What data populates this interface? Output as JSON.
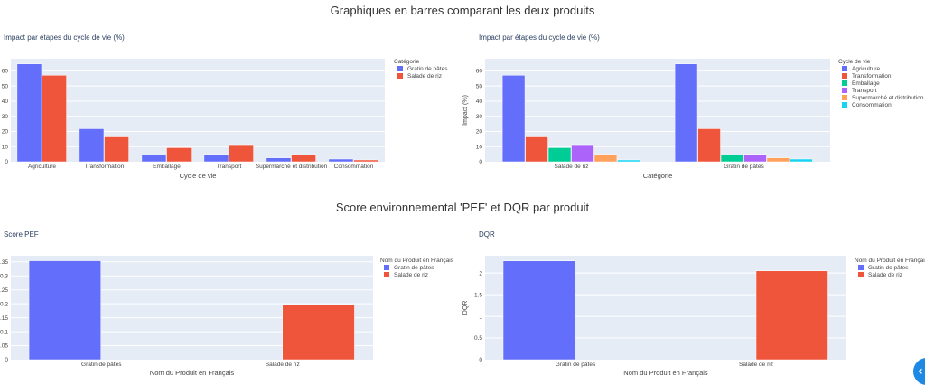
{
  "page": {
    "section1_title": "Graphiques en barres comparant les deux produits",
    "section2_title": "Score environnemental 'PEF' et DQR par produit"
  },
  "colors": {
    "blue": "#636efa",
    "red": "#ef553b",
    "green": "#00cc96",
    "purple": "#ab63fa",
    "orange": "#ffa15a",
    "cyan": "#19d3f3",
    "plot_bg": "#e5ecf6"
  },
  "chart_data": [
    {
      "id": "lifecycle-by-stage",
      "type": "bar",
      "title": "Impact par étapes du cycle de vie (%)",
      "xlabel": "Cycle de vie",
      "ylabel": "",
      "ylim": [
        0,
        68
      ],
      "yticks": [
        0,
        10,
        20,
        30,
        40,
        50,
        60
      ],
      "grid": true,
      "legend_title": "Catégorie",
      "legend_position": "top-right",
      "categories": [
        "Agriculture",
        "Transformation",
        "Emballage",
        "Transport",
        "Supermarché et distribution",
        "Consommation"
      ],
      "series": [
        {
          "name": "Gratin de pâtes",
          "color": "#636efa",
          "values": [
            64.6,
            21.8,
            4.5,
            4.9,
            2.6,
            1.8
          ]
        },
        {
          "name": "Salade de riz",
          "color": "#ef553b",
          "values": [
            57.1,
            16.4,
            9.3,
            11.3,
            4.8,
            1.2
          ]
        }
      ]
    },
    {
      "id": "lifecycle-by-product",
      "type": "bar",
      "title": "Impact par étapes du cycle de vie (%)",
      "xlabel": "Catégorie",
      "ylabel": "Impact (%)",
      "ylim": [
        0,
        68
      ],
      "yticks": [
        0,
        10,
        20,
        30,
        40,
        50,
        60
      ],
      "grid": true,
      "legend_title": "Cycle de vie",
      "legend_position": "top-right",
      "categories": [
        "Salade de riz",
        "Gratin de pâtes"
      ],
      "series": [
        {
          "name": "Agriculture",
          "color": "#636efa",
          "values": [
            57.1,
            64.6
          ]
        },
        {
          "name": "Transformation",
          "color": "#ef553b",
          "values": [
            16.4,
            21.8
          ]
        },
        {
          "name": "Emballage",
          "color": "#00cc96",
          "values": [
            9.3,
            4.5
          ]
        },
        {
          "name": "Transport",
          "color": "#ab63fa",
          "values": [
            11.3,
            4.9
          ]
        },
        {
          "name": "Supermarché et distribution",
          "color": "#ffa15a",
          "values": [
            4.8,
            2.6
          ]
        },
        {
          "name": "Consommation",
          "color": "#19d3f3",
          "values": [
            1.2,
            1.8
          ]
        }
      ]
    },
    {
      "id": "pef-score",
      "type": "bar",
      "title": "Score PEF",
      "xlabel": "Nom du Produit en Français",
      "ylabel": "",
      "ylim": [
        0,
        0.372
      ],
      "yticks": [
        0,
        0.05,
        0.1,
        0.15,
        0.2,
        0.25,
        0.3,
        0.35
      ],
      "ytick_labels": [
        "0",
        "0.05",
        "0.1",
        "0.15",
        "0.2",
        "0.25",
        "0.3",
        "0.35"
      ],
      "grid": true,
      "legend_title": "Nom du Produit en Français",
      "legend_position": "top-right",
      "categories": [
        "Gratin de pâtes",
        "Salade de riz"
      ],
      "series": [
        {
          "name": "Gratin de pâtes",
          "color": "#636efa",
          "values": [
            0.354,
            null
          ]
        },
        {
          "name": "Salade de riz",
          "color": "#ef553b",
          "values": [
            null,
            0.195
          ]
        }
      ]
    },
    {
      "id": "dqr-score",
      "type": "bar",
      "title": "DQR",
      "xlabel": "Nom du Produit en Français",
      "ylabel": "DQR",
      "ylim": [
        0,
        2.4
      ],
      "yticks": [
        0,
        0.5,
        1,
        1.5,
        2
      ],
      "ytick_labels": [
        "0",
        "0.5",
        "1",
        "1.5",
        "2"
      ],
      "grid": true,
      "legend_title": "Nom du Produit en Français",
      "legend_position": "top-right",
      "categories": [
        "Gratin de pâtes",
        "Salade de riz"
      ],
      "series": [
        {
          "name": "Gratin de pâtes",
          "color": "#636efa",
          "values": [
            2.28,
            null
          ]
        },
        {
          "name": "Salade de riz",
          "color": "#ef553b",
          "values": [
            null,
            2.05
          ]
        }
      ]
    }
  ],
  "controls": {
    "collapse_icon": "‹"
  }
}
